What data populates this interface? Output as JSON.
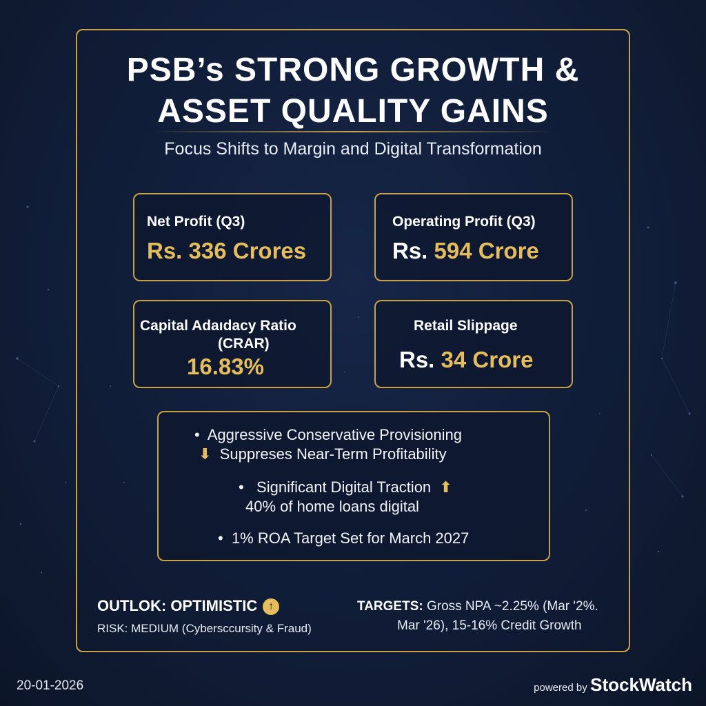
{
  "header": {
    "title_line1": "PSB’s STRONG GROWTH &",
    "title_line2": "ASSET QUALITY GAINS",
    "subtitle": "Focus Shifts to Margin and Digital Transformation"
  },
  "metrics": [
    {
      "label": "Net Profit (Q3)",
      "value": "Rs. 336 Crores"
    },
    {
      "label": "Operating Profit (Q3)",
      "value_prefix": "Rs. ",
      "value": "594 Crore"
    },
    {
      "label_line1": "Capital Adaıdacy Ratio",
      "label_line2": "(CRAR)",
      "value": "16.83%"
    },
    {
      "label": "Retail Slippage",
      "value_prefix": "Rs. ",
      "value": "34 Crore"
    }
  ],
  "highlights": {
    "b1_line1": "Aggressive Conservative Provisioning",
    "b1_line2": "Suppreses Near-Term Profitability",
    "b2_line1": "Significant Digital Traction",
    "b2_line2": "40% of home loans digital",
    "b3": "1% ROA Target Set for March 2027"
  },
  "footer": {
    "outlook": "OUTLOK: OPTIMISTIC",
    "risk": "RISK: MEDIUM (Cybersccursity & Fraud)",
    "targets_label": "TARGETS:",
    "targets_line1": "Gross NPA ~2.25% (Mar '2%.",
    "targets_line2": "Mar '26), 15-16% Credit Growth",
    "date": "20-01-2026",
    "powered_by": "powered by",
    "brand": "StockWatch"
  },
  "colors": {
    "background": "#13213f",
    "gold": "#c8a24a",
    "value_gold": "#e6bd5c",
    "text": "#ffffff"
  },
  "icons": {
    "down_arrow": "arrow-down-icon",
    "up_arrow": "arrow-up-icon",
    "outlook_up": "arrow-up-circle-icon"
  }
}
